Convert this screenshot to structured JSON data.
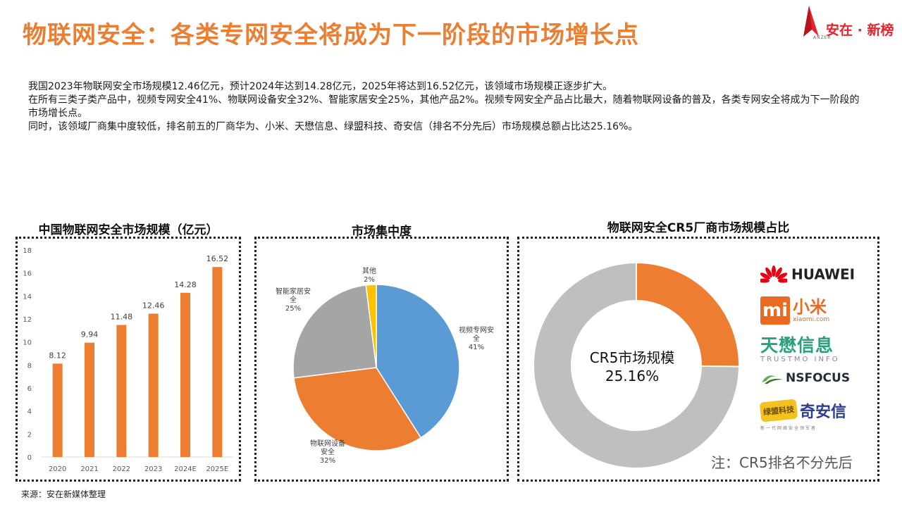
{
  "page": {
    "title": "物联网安全：各类专网安全将成为下一阶段的市场增长点",
    "logo_text": "安在 · 新榜",
    "logo_sub": "ANZER",
    "intro": [
      "我国2023年物联网安全市场规模12.46亿元，预计2024年达到14.28亿元，2025年将达到16.52亿元，该领域市场规模正逐步扩大。",
      "在所有三类子类产品中，视频专网安全41%、物联网设备安全32%、智能家居安全25%，其他产品2%。视频专网安全产品占比最大，随着物联网设备的普及，各类专网安全将成为下一阶段的市场增长点。",
      "同时，该领域厂商集中度较低，排名前五的厂商华为、小米、天懋信息、绿盟科技、奇安信（排名不分先后）市场规模总额占比达25.16%。"
    ],
    "source": "来源：安在新媒体整理"
  },
  "chart_data": [
    {
      "type": "bar",
      "title": "中国物联网安全市场规模（亿元）",
      "categories": [
        "2020",
        "2021",
        "2022",
        "2023",
        "2024E",
        "2025E"
      ],
      "values": [
        8.12,
        9.94,
        11.48,
        12.46,
        14.28,
        16.52
      ],
      "ylim": [
        0,
        18
      ],
      "yticks": [
        0,
        2,
        4,
        6,
        8,
        10,
        12,
        14,
        16,
        18
      ],
      "color": "#ed7d31",
      "grid": false
    },
    {
      "type": "pie",
      "title": "市场集中度",
      "slices": [
        {
          "label": "视频专网安全",
          "display": "视频专网安\n全\n41%",
          "value": 41,
          "color": "#5b9bd5"
        },
        {
          "label": "物联网设备安全",
          "display": "物联网设备\n安全\n32%",
          "value": 32,
          "color": "#ed7d31"
        },
        {
          "label": "智能家居安全",
          "display": "智能家居安\n全\n25%",
          "value": 25,
          "color": "#a5a5a5"
        },
        {
          "label": "其他",
          "display": "其他\n2%",
          "value": 2,
          "color": "#ffc000"
        }
      ]
    },
    {
      "type": "pie",
      "title": "物联网安全CR5厂商市场规模占比",
      "center_label": "CR5市场规模",
      "center_value": "25.16%",
      "slices": [
        {
          "label": "CR5",
          "value": 25.16,
          "color": "#ed7d31"
        },
        {
          "label": "其他",
          "value": 74.84,
          "color": "#bfbfbf"
        }
      ],
      "note": "注：CR5排名不分先后",
      "vendors": {
        "huawei": "HUAWEI",
        "mi_cn": "小米",
        "mi_url": "xiaomi.com",
        "mi_mark": "mi",
        "trust_cn": "天懋信息",
        "trust_en": "TRUSTMO INFO",
        "nsfocus": "NSFOCUS",
        "qax_tag": "绿盟科技",
        "qax_cn": "奇安信",
        "qax_sub": "新一代网络安全领军者"
      }
    }
  ]
}
